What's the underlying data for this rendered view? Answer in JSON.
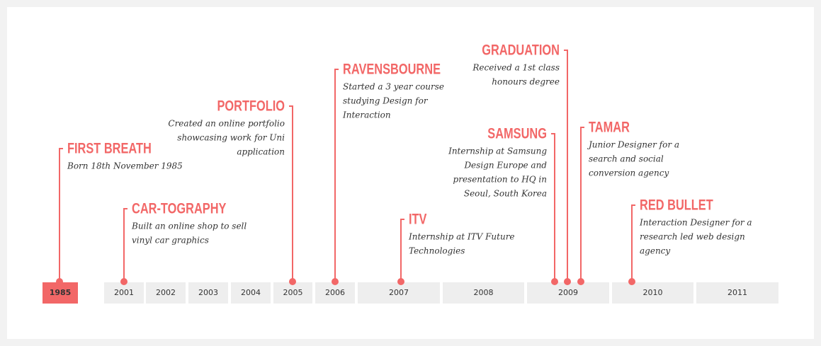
{
  "years": [
    "1985",
    "2001",
    "2002",
    "2003",
    "2004",
    "2005",
    "2006",
    "2007",
    "2008",
    "2009",
    "2010",
    "2011"
  ],
  "events": [
    {
      "title": "FIRST BREATH",
      "description": [
        "Born 18th November 1985"
      ]
    },
    {
      "title": "CAR-TOGRAPHY",
      "description": [
        "Built an online shop to sell",
        "vinyl car graphics"
      ]
    },
    {
      "title": "PORTFOLIO",
      "description": [
        "Created an online portfolio",
        "showcasing work for Uni",
        "application"
      ]
    },
    {
      "title": "RAVENSBOURNE",
      "description": [
        "Started a 3 year course",
        "studying Design for",
        "Interaction"
      ]
    },
    {
      "title": "ITV",
      "description": [
        "Internship at ITV Future",
        "Technologies"
      ]
    },
    {
      "title": "GRADUATION",
      "description": [
        "Received a 1st class",
        "honours degree"
      ]
    },
    {
      "title": "SAMSUNG",
      "description": [
        "Internship at Samsung",
        "Design Europe and",
        "presentation to HQ in",
        "Seoul, South Korea"
      ]
    },
    {
      "title": "TAMAR",
      "description": [
        "Junior Designer for a",
        "search and social",
        "conversion agency"
      ]
    },
    {
      "title": "RED BULLET",
      "description": [
        "Interaction Designer for a",
        "research led web design",
        "agency"
      ]
    }
  ]
}
